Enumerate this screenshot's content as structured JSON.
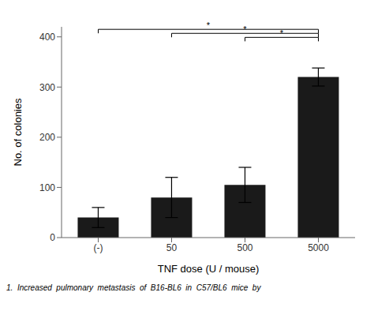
{
  "chart_data": {
    "type": "bar",
    "categories": [
      "(-)",
      "50",
      "500",
      "5000"
    ],
    "values": [
      40,
      80,
      105,
      320
    ],
    "errors": [
      20,
      40,
      35,
      18
    ],
    "color": "#1a1a1a",
    "ylabel": "No. of colonies",
    "xlabel": "TNF dose (U / mouse)",
    "ylim": [
      0,
      420
    ],
    "yticks": [
      0,
      100,
      200,
      300,
      400
    ],
    "grid": false,
    "annotations": [
      {
        "x1": "(-)",
        "x2": "5000",
        "y": 415,
        "label": "*"
      },
      {
        "x1": "50",
        "x2": "5000",
        "y": 407,
        "label": "*"
      },
      {
        "x1": "500",
        "x2": "5000",
        "y": 399,
        "label": "*"
      }
    ],
    "caption": "1.  Increased  pulmonary  metastasis  of  B16-BL6  in  C57/BL6  mice  by"
  }
}
